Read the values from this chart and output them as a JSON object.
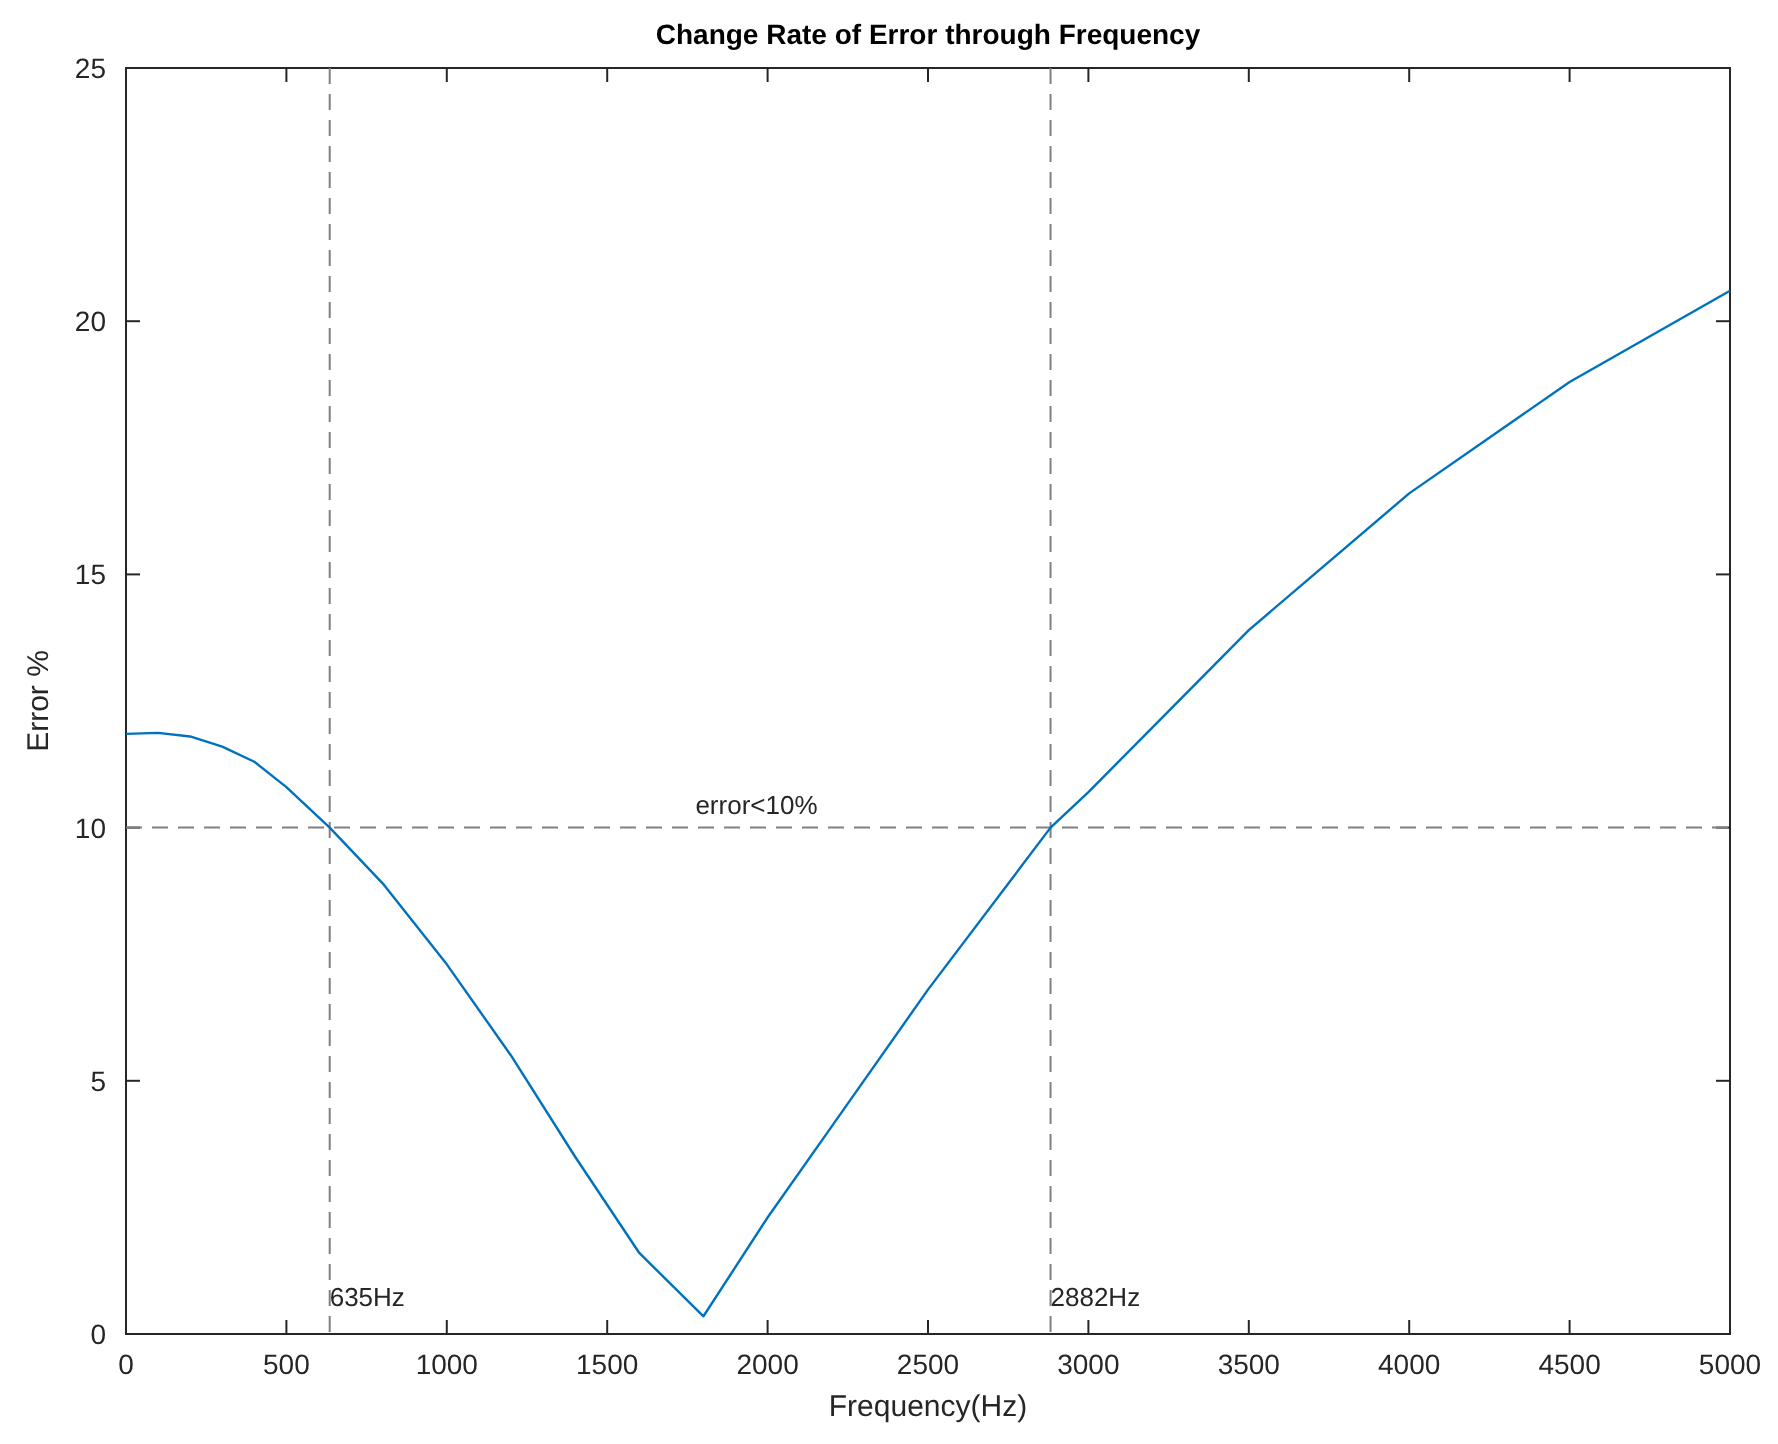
{
  "chart_data": {
    "type": "line",
    "title": "Change Rate of Error through Frequency",
    "xlabel": "Frequency(Hz)",
    "ylabel": "Error %",
    "x": [
      0,
      100,
      200,
      300,
      400,
      500,
      635,
      800,
      1000,
      1200,
      1400,
      1600,
      1800,
      2000,
      2200,
      2500,
      2882,
      3000,
      3500,
      4000,
      4500,
      5000
    ],
    "series": [
      {
        "color": "#0072bd",
        "values": [
          11.85,
          11.87,
          11.8,
          11.6,
          11.3,
          10.8,
          10,
          8.9,
          7.3,
          5.5,
          3.5,
          1.6,
          0.35,
          2.3,
          4.1,
          6.8,
          10,
          10.7,
          13.9,
          16.6,
          18.8,
          20.6
        ]
      }
    ],
    "xlim": [
      0,
      5000
    ],
    "xticks": [
      0,
      500,
      1000,
      1500,
      2000,
      2500,
      3000,
      3500,
      4000,
      4500,
      5000
    ],
    "ylim": [
      0,
      25
    ],
    "yticks": [
      0,
      5,
      10,
      15,
      20,
      25
    ],
    "ref_lines": [
      {
        "axis": "x",
        "value": 635,
        "label": "635Hz",
        "color": "#808080",
        "line_style": "dashed"
      },
      {
        "axis": "x",
        "value": 2882,
        "label": "2882Hz",
        "color": "#808080",
        "line_style": "dashed"
      },
      {
        "axis": "y",
        "value": 10,
        "label": "error<10%",
        "color": "#808080",
        "line_style": "dashed"
      }
    ],
    "marker": "none",
    "line_style": "solid"
  }
}
